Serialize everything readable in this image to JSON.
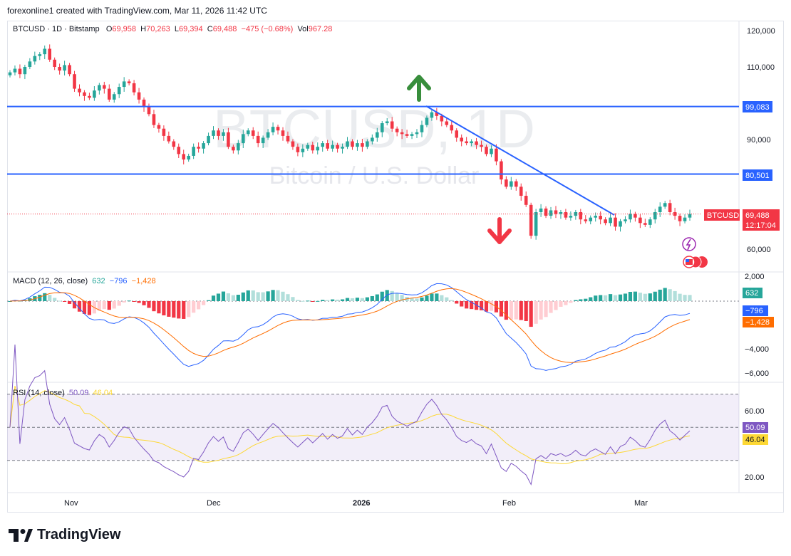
{
  "header": {
    "caption": "forexonline1 created with TradingView.com, Mar 11, 2026 11:42 UTC"
  },
  "legend": {
    "symbol": "BTCUSD · 1D · Bitstamp",
    "o_label": "O",
    "o": "69,958",
    "h_label": "H",
    "h": "70,263",
    "l_label": "L",
    "l": "69,394",
    "c_label": "C",
    "c": "69,488",
    "change": "−475 (−0.68%)",
    "vol_label": "Vol",
    "vol": "967.28"
  },
  "watermark": {
    "title": "BTCUSD, 1D",
    "subtitle": "Bitcoin / U.S. Dollar"
  },
  "price_axis": {
    "ticks": [
      "120,000",
      "110,000",
      "90,000",
      "60,000"
    ]
  },
  "levels": [
    {
      "label": "99,083",
      "value": 99083,
      "color": "#2962ff"
    },
    {
      "label": "80,501",
      "value": 80501,
      "color": "#2962ff"
    }
  ],
  "last_price": {
    "symbol": "BTCUSD",
    "price": "69,488",
    "countdown": "12:17:04",
    "value": 69488,
    "color": "#f23645"
  },
  "macd": {
    "title": "MACD (12, 26, close)",
    "hist": "632",
    "macd": "−796",
    "signal": "−1,428",
    "axis": [
      "2,000",
      "−4,000",
      "−6,000"
    ],
    "colors": {
      "macd": "#2962ff",
      "signal": "#ff6d00",
      "hist_up": "#26a69a",
      "hist_down": "#f23645"
    }
  },
  "rsi": {
    "title": "RSI (14, close)",
    "value": "50.09",
    "ma": "46.04",
    "axis": [
      "60.00",
      "20.00"
    ],
    "colors": {
      "rsi": "#7e57c2",
      "ma": "#fdd835"
    }
  },
  "time_axis": [
    "Nov",
    "Dec",
    "2026",
    "Feb",
    "Mar"
  ],
  "brand": "TradingView",
  "chart_data": {
    "type": "candlestick",
    "symbol": "BTCUSD",
    "interval": "1D",
    "y_range": [
      55000,
      123000
    ],
    "close_series_approx": [
      108500,
      109500,
      108000,
      110000,
      111500,
      113000,
      113500,
      115000,
      112000,
      110000,
      109000,
      110500,
      108000,
      104000,
      103000,
      102000,
      101500,
      103500,
      105000,
      104000,
      101000,
      102500,
      104500,
      106000,
      105500,
      103000,
      101000,
      99000,
      97000,
      94000,
      93000,
      91000,
      89500,
      88000,
      86000,
      84500,
      85500,
      88000,
      87500,
      89000,
      91000,
      92500,
      91000,
      92000,
      88000,
      87000,
      89000,
      91500,
      92500,
      91000,
      89000,
      90500,
      92000,
      93500,
      92500,
      91000,
      89500,
      88000,
      86500,
      87500,
      88500,
      87000,
      88000,
      89000,
      87500,
      88500,
      87500,
      88000,
      89500,
      88000,
      89000,
      88000,
      89500,
      90500,
      92000,
      94500,
      95000,
      93000,
      92000,
      91500,
      91000,
      91500,
      92000,
      94000,
      96000,
      97500,
      96500,
      95000,
      94000,
      92500,
      90500,
      89500,
      89000,
      89500,
      88500,
      88000,
      86000,
      87500,
      84000,
      79000,
      77000,
      78500,
      77000,
      74500,
      72000,
      63500,
      70000,
      71000,
      69000,
      70500,
      69500,
      70000,
      68500,
      69000,
      70000,
      68000,
      67500,
      68500,
      69000,
      68000,
      67000,
      68500,
      66000,
      67500,
      68000,
      69500,
      68500,
      67000,
      66500,
      68000,
      70000,
      71500,
      72500,
      70000,
      69000,
      67500,
      68500,
      69488
    ]
  }
}
